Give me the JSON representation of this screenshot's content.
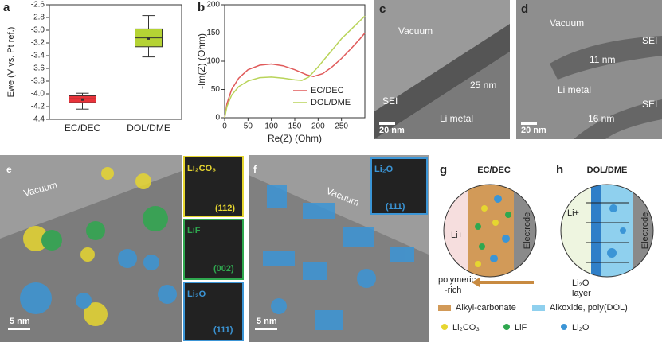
{
  "chart_data": [
    {
      "type": "box",
      "panel_label": "a",
      "y_label": "Ewe (V vs. Pt ref.)",
      "categories": [
        "EC/DEC",
        "DOL/DME"
      ],
      "boxes": [
        {
          "min": -4.24,
          "q1": -4.14,
          "median": -4.08,
          "q3": -4.03,
          "max": -3.99,
          "mean": -4.09,
          "color": "#e8333a"
        },
        {
          "min": -3.42,
          "q1": -3.26,
          "median": -3.12,
          "q3": -2.98,
          "max": -2.77,
          "mean": -3.13,
          "color": "#b5d334"
        }
      ],
      "ylim": [
        -4.4,
        -2.6
      ],
      "yticks": [
        -2.6,
        -2.8,
        {
          "value": -3,
          "label": "-3.0"
        },
        -3.2,
        -3.4,
        -3.6,
        -3.8,
        {
          "value": -4,
          "label": "-4.0"
        },
        -4.2,
        -4.4
      ]
    },
    {
      "type": "line",
      "panel_label": "b",
      "x_label": "Re(Z) (Ohm)",
      "y_label": "-Im(Z) (Ohm)",
      "series": [
        {
          "name": "EC/DEC",
          "color": "#e05a5a",
          "x": [
            0,
            5,
            15,
            30,
            50,
            75,
            100,
            125,
            150,
            175,
            190,
            210,
            230,
            250,
            270,
            290,
            300
          ],
          "values": [
            0,
            25,
            50,
            70,
            85,
            93,
            95,
            92,
            85,
            76,
            73,
            78,
            90,
            105,
            122,
            140,
            150
          ]
        },
        {
          "name": "DOL/DME",
          "color": "#b9d45a",
          "x": [
            0,
            5,
            15,
            30,
            50,
            75,
            100,
            125,
            150,
            165,
            180,
            200,
            225,
            250,
            275,
            300
          ],
          "values": [
            0,
            20,
            40,
            55,
            65,
            71,
            72,
            70,
            67,
            66,
            72,
            90,
            115,
            140,
            160,
            180
          ]
        }
      ],
      "xlim": [
        0,
        300
      ],
      "xticks": [
        0,
        50,
        100,
        150,
        200,
        250
      ],
      "ylim": [
        0,
        200
      ],
      "yticks": [
        0,
        50,
        100,
        150,
        200
      ]
    }
  ],
  "panels": {
    "c": {
      "label": "c",
      "vacuum": "Vacuum",
      "thickness": "25 nm",
      "sei": "SEI",
      "metal": "Li metal",
      "scale": "20 nm"
    },
    "d": {
      "label": "d",
      "vacuum": "Vacuum",
      "sei_top": "SEI",
      "thickness_top": "11 nm",
      "metal": "Li metal",
      "sei_bottom": "SEI",
      "thickness_bottom": "16 nm",
      "scale": "20 nm"
    },
    "e": {
      "label": "e",
      "vacuum": "Vacuum",
      "scale": "5 nm",
      "insets": [
        {
          "phase": "Li₂CO₃",
          "plane": "(112)"
        },
        {
          "phase": "LiF",
          "plane": "(002)"
        },
        {
          "phase": "Li₂O",
          "plane": "(111)"
        }
      ]
    },
    "f": {
      "label": "f",
      "vacuum": "Vacuum",
      "scale": "5 nm",
      "inset": {
        "phase": "Li₂O",
        "plane": "(111)"
      }
    },
    "g": {
      "label": "g",
      "title": "EC/DEC",
      "ion": "Li+",
      "electrode": "Electrode",
      "note_1": "polymeric",
      "note_2": "-rich"
    },
    "h": {
      "label": "h",
      "title": "DOL/DME",
      "ion": "Li+",
      "electrode": "Electrode",
      "layer_1": "Li₂O",
      "layer_2": "layer"
    },
    "legend": [
      "Alkyl-carbonate",
      "Alkoxide, poly(DOL)",
      "Li₂CO₃",
      "LiF",
      "Li₂O"
    ]
  }
}
